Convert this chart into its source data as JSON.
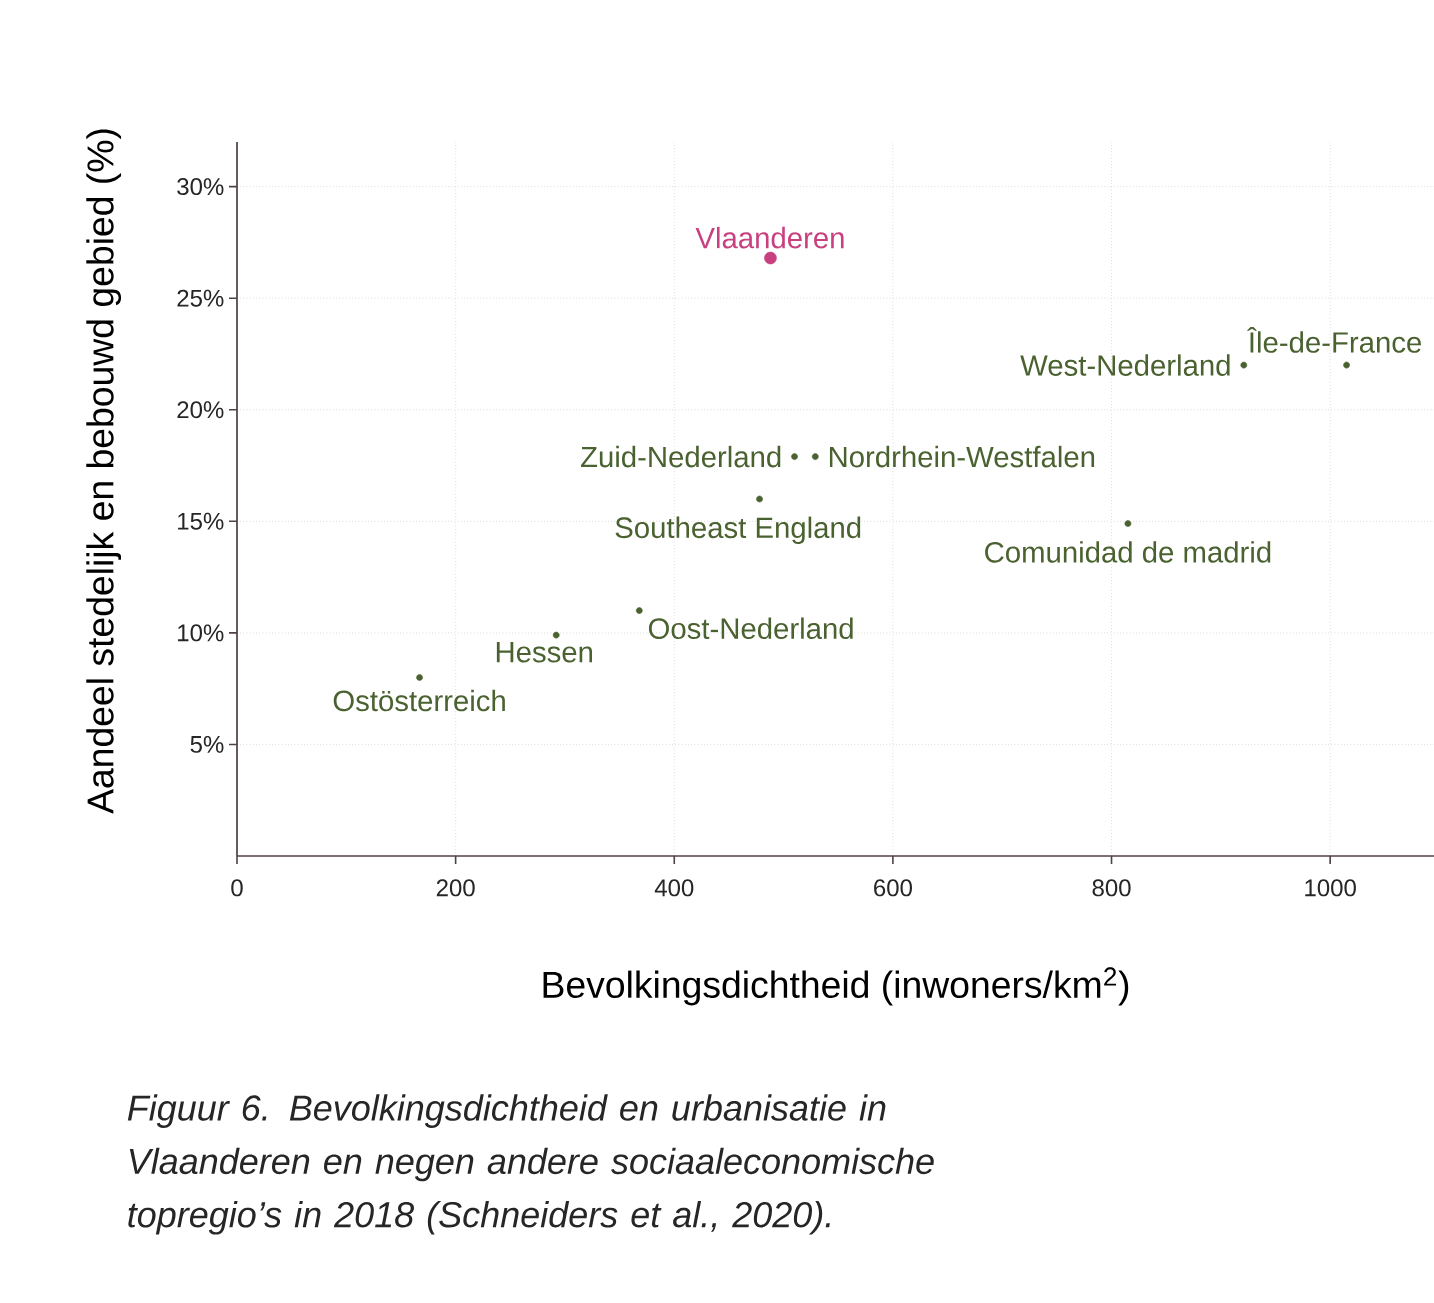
{
  "chart_data": {
    "type": "scatter",
    "xlabel": "Bevolkingsdichtheid (inwoners/km$^{2}$)",
    "ylabel": "Aandeel stedelijk en bebouwd gebied (%)",
    "annotations": [
      "Figuur 6. Bevolkingsdichtheid en urbanisatie in Vlaanderen en negen andere sociaaleconomische topregio’s in 2018 (Schneiders et al., 2020)."
    ],
    "xlim": [
      0,
      1095
    ],
    "ylim": [
      0,
      32
    ],
    "xticks": [
      0,
      200,
      400,
      600,
      800,
      1000
    ],
    "yticks": [
      {
        "value": 5,
        "label": "5%"
      },
      {
        "value": 10,
        "label": "10%"
      },
      {
        "value": 15,
        "label": "15%"
      },
      {
        "value": 20,
        "label": "20%"
      },
      {
        "value": 25,
        "label": "25%"
      },
      {
        "value": 30,
        "label": "30%"
      }
    ],
    "grid": true,
    "series": [
      {
        "name": "Vlaanderen",
        "color": "#c8407f",
        "x": [
          488
        ],
        "values": [
          26.8
        ]
      },
      {
        "name": "West-Nederland",
        "color": "#4a6130",
        "x": [
          921
        ],
        "values": [
          22.0
        ]
      },
      {
        "name": "Île-de-France",
        "color": "#4a6130",
        "x": [
          1015
        ],
        "values": [
          22.0
        ]
      },
      {
        "name": "Zuid-Nederland",
        "color": "#4a6130",
        "x": [
          510
        ],
        "values": [
          17.9
        ]
      },
      {
        "name": "Nordrhein-Westfalen",
        "color": "#4a6130",
        "x": [
          529
        ],
        "values": [
          17.9
        ]
      },
      {
        "name": "Southeast England",
        "color": "#4a6130",
        "x": [
          478
        ],
        "values": [
          16.0
        ]
      },
      {
        "name": "Comunidad de madrid",
        "color": "#4a6130",
        "x": [
          815
        ],
        "values": [
          14.9
        ]
      },
      {
        "name": "Oost-Nederland",
        "color": "#4a6130",
        "x": [
          368
        ],
        "values": [
          11.0
        ]
      },
      {
        "name": "Hessen",
        "color": "#4a6130",
        "x": [
          292
        ],
        "values": [
          9.9
        ]
      },
      {
        "name": "Ostösterreich",
        "color": "#4a6130",
        "x": [
          167
        ],
        "values": [
          8.0
        ]
      }
    ]
  }
}
